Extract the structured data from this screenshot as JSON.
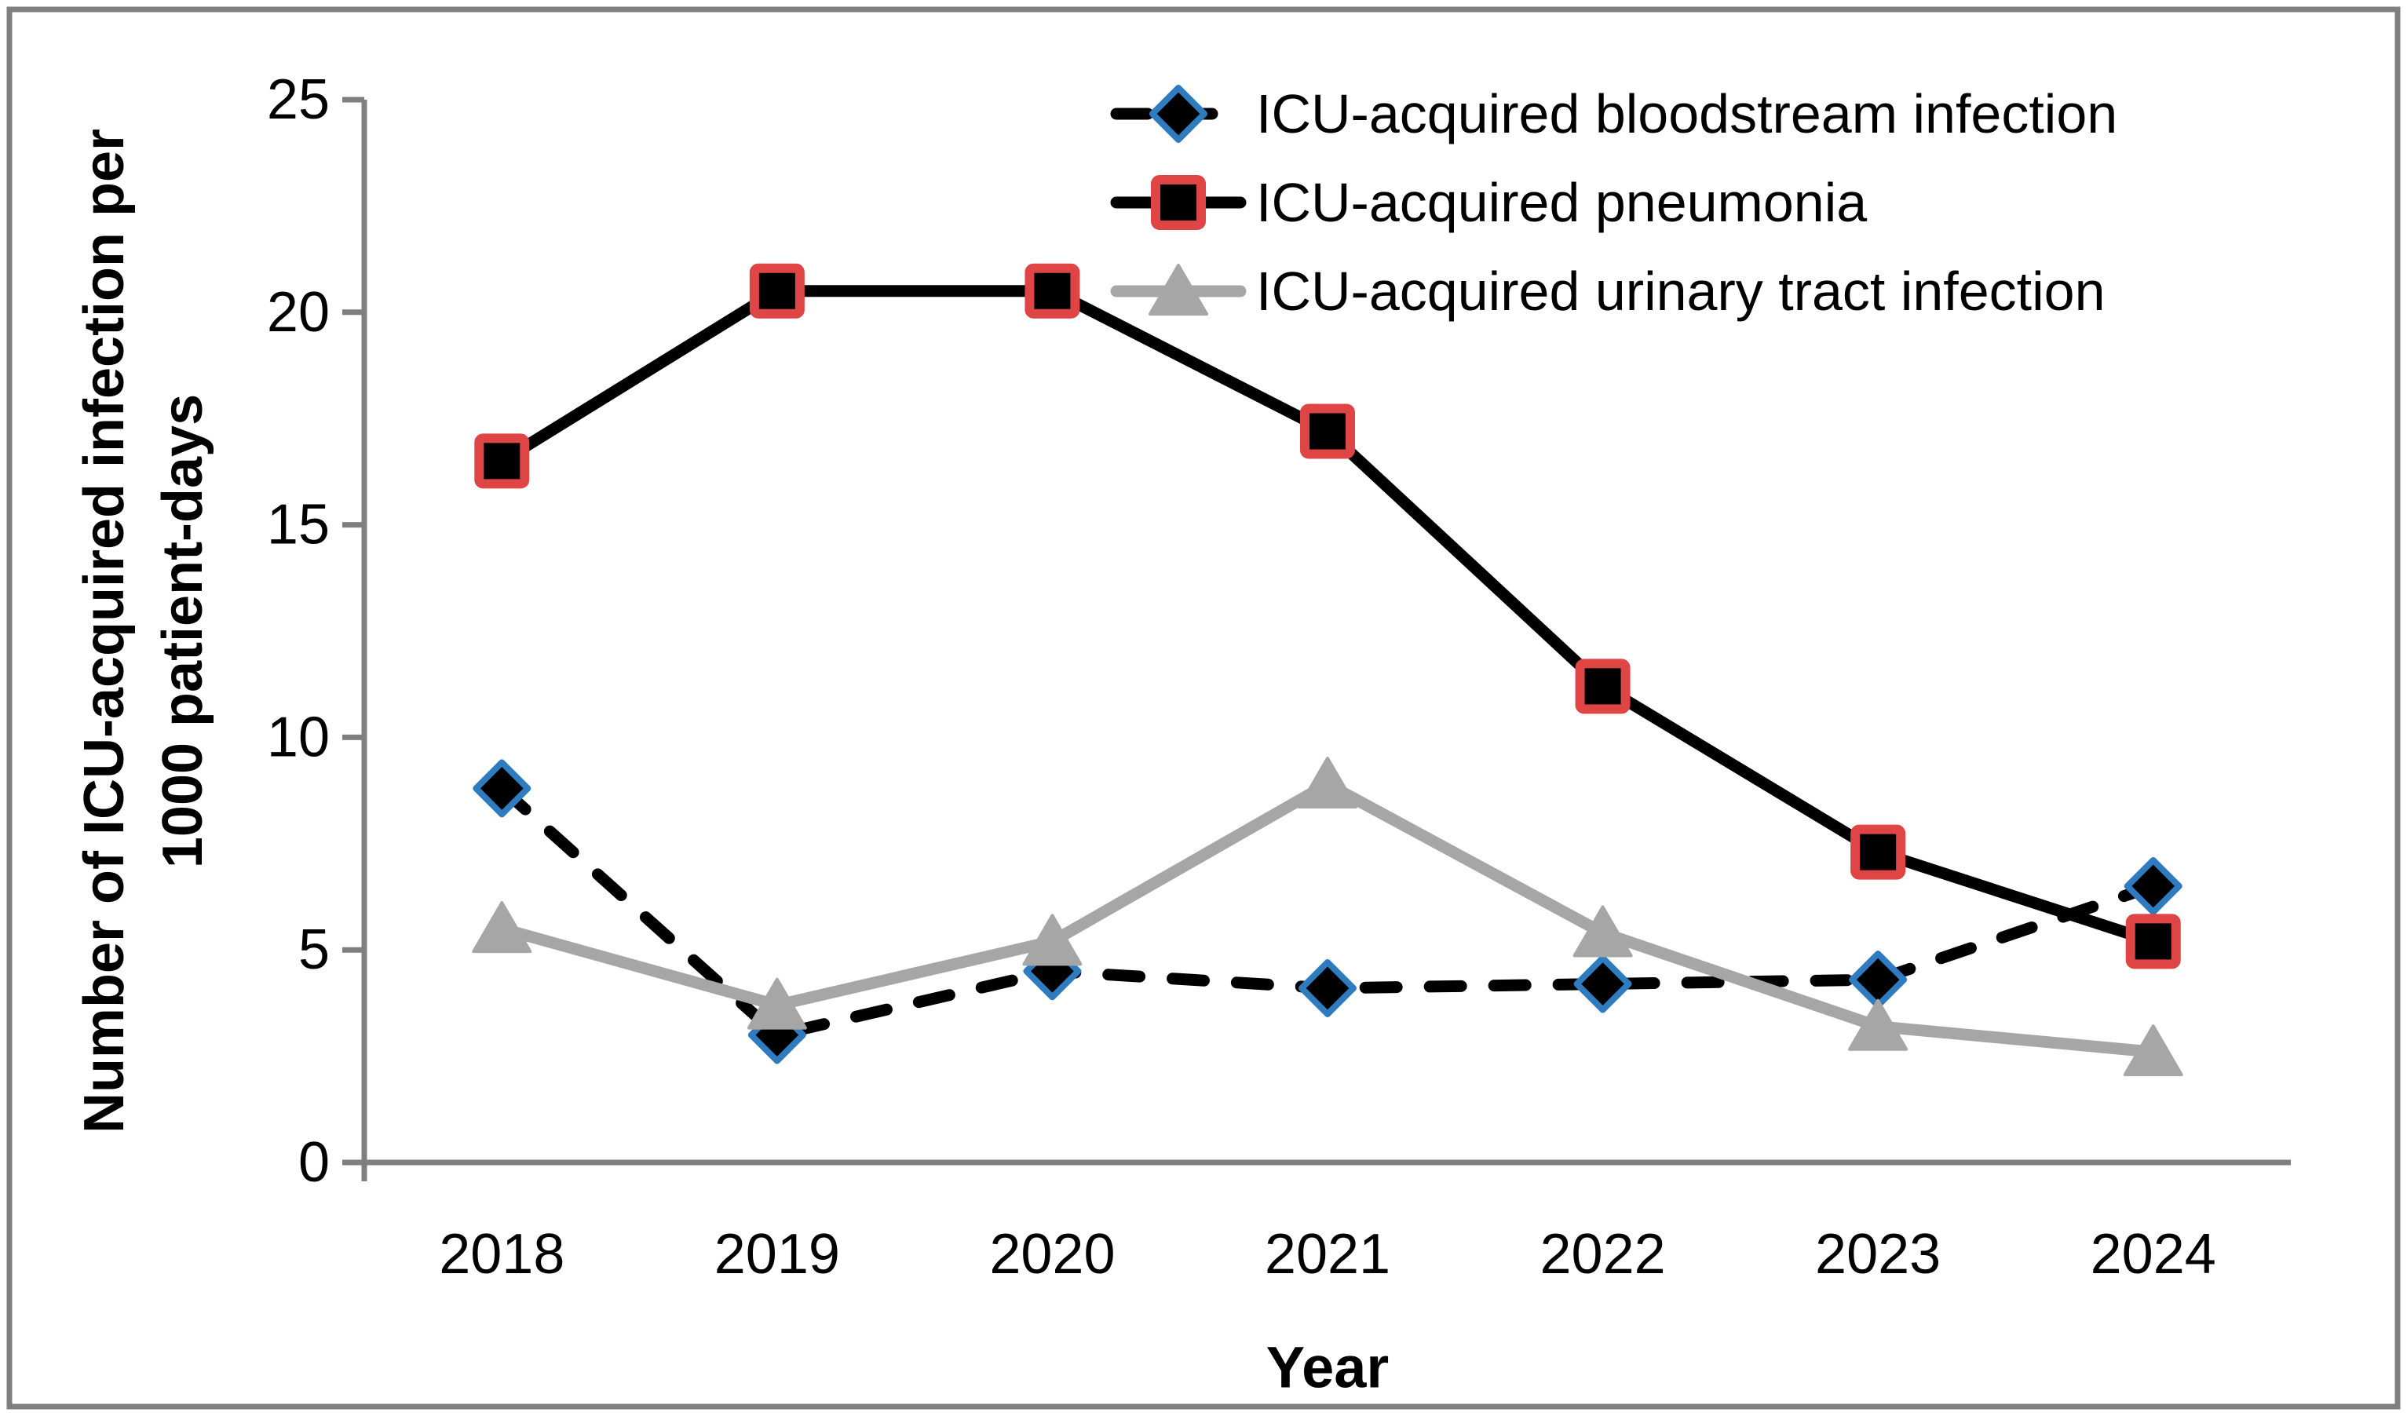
{
  "figure": {
    "background": "#FFFFFF",
    "border_color": "#7F7F7F"
  },
  "chart_data": {
    "type": "line",
    "title": "",
    "xlabel": "Year",
    "ylabel": "Number of ICU-acquired infection per 1000 patient-days",
    "ylabel_lines": [
      "Number of ICU-acquired infection per",
      "1000 patient-days"
    ],
    "categories": [
      "2018",
      "2019",
      "2020",
      "2021",
      "2022",
      "2023",
      "2024"
    ],
    "ylim": [
      0,
      25
    ],
    "yticks": [
      0,
      5,
      10,
      15,
      20,
      25
    ],
    "grid": false,
    "legend_position": "top-right-inside",
    "axis_color": "#7F7F7F",
    "text_color": "#000000",
    "series": [
      {
        "name": "ICU-acquired bloodstream infection",
        "values": [
          8.8,
          3.0,
          4.5,
          4.1,
          4.2,
          4.3,
          6.5
        ],
        "line_color": "#000000",
        "line_style": "dashed",
        "marker": "diamond",
        "marker_fill": "#000000",
        "marker_edge": "#2E7CBF"
      },
      {
        "name": "ICU-acquired pneumonia",
        "values": [
          16.5,
          20.5,
          20.5,
          17.2,
          11.2,
          7.3,
          5.2
        ],
        "line_color": "#000000",
        "line_style": "solid",
        "marker": "square",
        "marker_fill": "#000000",
        "marker_edge": "#E04546"
      },
      {
        "name": "ICU-acquired urinary tract infection",
        "values": [
          5.5,
          3.7,
          5.2,
          8.9,
          5.4,
          3.2,
          2.6
        ],
        "line_color": "#A6A6A6",
        "line_style": "solid",
        "marker": "triangle",
        "marker_fill": "#A6A6A6",
        "marker_edge": "#A6A6A6"
      }
    ]
  }
}
